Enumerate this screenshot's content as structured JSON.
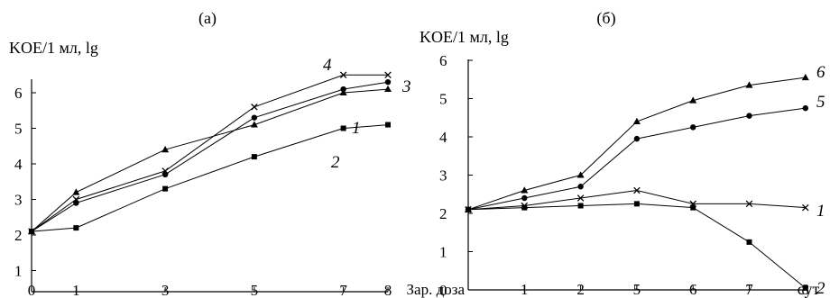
{
  "chart_data": [
    {
      "type": "line",
      "panel_label": "(a)",
      "ylabel": "KOE/1 мл, lg",
      "xlabel": "",
      "x": [
        0,
        1,
        3,
        5,
        7,
        8
      ],
      "x_tick_labels": [
        "0",
        "1",
        "3",
        "5",
        "7",
        "8"
      ],
      "ylim": [
        1,
        6.5
      ],
      "y_ticks": [
        1,
        2,
        3,
        4,
        5,
        6
      ],
      "series": [
        {
          "name": "1",
          "marker": "circle",
          "values": [
            2.1,
            2.9,
            3.7,
            5.3,
            6.1,
            6.3
          ]
        },
        {
          "name": "2",
          "marker": "square",
          "values": [
            2.1,
            2.2,
            3.3,
            4.2,
            5.0,
            5.1
          ]
        },
        {
          "name": "3",
          "marker": "triangle",
          "values": [
            2.1,
            3.2,
            4.4,
            5.1,
            6.0,
            6.1
          ]
        },
        {
          "name": "4",
          "marker": "x",
          "values": [
            2.1,
            3.0,
            3.8,
            5.6,
            6.5,
            6.5
          ]
        }
      ]
    },
    {
      "type": "line",
      "panel_label": "(б)",
      "ylabel": "KOE/1 мл, lg",
      "xlabel": "сут",
      "x_tick_labels": [
        "Зар. доза",
        "1",
        "2",
        "5",
        "6",
        "7",
        "8"
      ],
      "ylim": [
        0,
        6
      ],
      "y_ticks": [
        0,
        1,
        2,
        3,
        4,
        5,
        6
      ],
      "series": [
        {
          "name": "1",
          "marker": "x",
          "values": [
            2.1,
            2.2,
            2.4,
            2.6,
            2.25,
            2.25,
            2.15
          ]
        },
        {
          "name": "2",
          "marker": "square",
          "values": [
            2.1,
            2.15,
            2.2,
            2.25,
            2.15,
            1.25,
            0.05
          ]
        },
        {
          "name": "5",
          "marker": "circle",
          "values": [
            2.1,
            2.4,
            2.7,
            3.95,
            4.25,
            4.55,
            4.75
          ]
        },
        {
          "name": "6",
          "marker": "triangle",
          "values": [
            2.1,
            2.6,
            3.0,
            4.4,
            4.95,
            5.35,
            5.55
          ]
        }
      ]
    }
  ]
}
